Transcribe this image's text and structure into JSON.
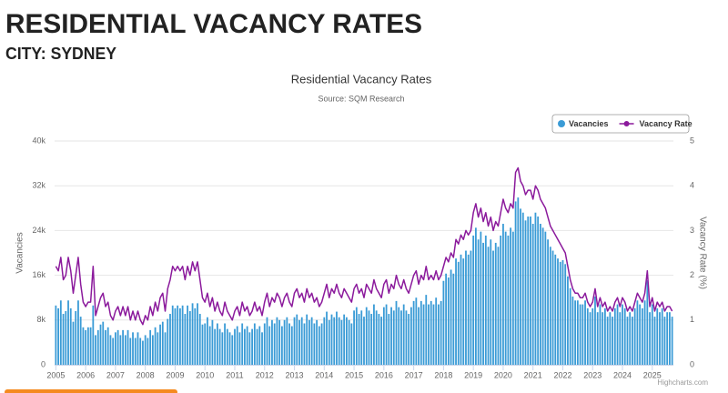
{
  "header": {
    "title": "RESIDENTIAL VACANCY RATES",
    "subtitle": "CITY: SYDNEY"
  },
  "credits": "Highcharts.com",
  "chart_data": {
    "type": "bar-line",
    "title": "Residential Vacancy Rates",
    "subtitle": "Source: SQM Research",
    "ylabel": "Vacancies",
    "y2label": "Vacancy Rate (%)",
    "legend": "top-right",
    "grid": true,
    "ylim": [
      0,
      40000
    ],
    "yticks": [
      0,
      {
        "value": 8000,
        "label": "8k"
      },
      {
        "value": 16000,
        "label": "16k"
      },
      {
        "value": 24000,
        "label": "24k"
      },
      {
        "value": 32000,
        "label": "32k"
      },
      {
        "value": 40000,
        "label": "40k"
      }
    ],
    "y2lim": [
      0,
      5
    ],
    "y2ticks": [
      0,
      1,
      2,
      3,
      4,
      5
    ],
    "categories": [
      "2005",
      null,
      null,
      null,
      null,
      null,
      null,
      null,
      null,
      null,
      null,
      null,
      "2006",
      null,
      null,
      null,
      null,
      null,
      null,
      null,
      null,
      null,
      null,
      null,
      "2007",
      null,
      null,
      null,
      null,
      null,
      null,
      null,
      null,
      null,
      null,
      null,
      "2008",
      null,
      null,
      null,
      null,
      null,
      null,
      null,
      null,
      null,
      null,
      null,
      "2009",
      null,
      null,
      null,
      null,
      null,
      null,
      null,
      null,
      null,
      null,
      null,
      "2010",
      null,
      null,
      null,
      null,
      null,
      null,
      null,
      null,
      null,
      null,
      null,
      "2011",
      null,
      null,
      null,
      null,
      null,
      null,
      null,
      null,
      null,
      null,
      null,
      "2012",
      null,
      null,
      null,
      null,
      null,
      null,
      null,
      null,
      null,
      null,
      null,
      "2013",
      null,
      null,
      null,
      null,
      null,
      null,
      null,
      null,
      null,
      null,
      null,
      "2014",
      null,
      null,
      null,
      null,
      null,
      null,
      null,
      null,
      null,
      null,
      null,
      "2015",
      null,
      null,
      null,
      null,
      null,
      null,
      null,
      null,
      null,
      null,
      null,
      "2016",
      null,
      null,
      null,
      null,
      null,
      null,
      null,
      null,
      null,
      null,
      null,
      "2017",
      null,
      null,
      null,
      null,
      null,
      null,
      null,
      null,
      null,
      null,
      null,
      "2018",
      null,
      null,
      null,
      null,
      null,
      null,
      null,
      null,
      null,
      null,
      null,
      "2019",
      null,
      null,
      null,
      null,
      null,
      null,
      null,
      null,
      null,
      null,
      null,
      "2020",
      null,
      null,
      null,
      null,
      null,
      null,
      null,
      null,
      null,
      null,
      null,
      "2021",
      null,
      null,
      null,
      null,
      null,
      null,
      null,
      null,
      null,
      null,
      null,
      "2022",
      null,
      null,
      null,
      null,
      null,
      null,
      null,
      null,
      null,
      null,
      null,
      "2023",
      null,
      null,
      null,
      null,
      null,
      null,
      null,
      null,
      null,
      null,
      null,
      "2024",
      null,
      null,
      null,
      null,
      null,
      null,
      null,
      null,
      null,
      null,
      null,
      "2025",
      null,
      null,
      null,
      null,
      null,
      null,
      null,
      null
    ],
    "series": [
      {
        "name": "Vacancies",
        "color": "#3a9bd6",
        "values": [
          10600,
          10100,
          11500,
          9100,
          9600,
          11500,
          10100,
          7700,
          9600,
          11500,
          8600,
          6700,
          6200,
          6700,
          6700,
          10600,
          5300,
          6200,
          7200,
          7700,
          6200,
          6700,
          5300,
          4800,
          5800,
          6200,
          5300,
          6200,
          5300,
          6200,
          4800,
          5800,
          4800,
          5800,
          4800,
          4300,
          5300,
          4800,
          6200,
          5300,
          6700,
          5800,
          7200,
          7700,
          5800,
          8200,
          9100,
          10600,
          10100,
          10600,
          10100,
          10600,
          9100,
          10600,
          9600,
          11000,
          10100,
          11000,
          9100,
          7200,
          7400,
          8500,
          6900,
          8000,
          6400,
          7400,
          6400,
          5800,
          7400,
          6400,
          5800,
          5300,
          6400,
          6900,
          5800,
          7400,
          6400,
          6900,
          5800,
          6400,
          7400,
          6400,
          6900,
          5800,
          7400,
          8500,
          6900,
          8000,
          7400,
          8500,
          8000,
          6900,
          8000,
          8500,
          7400,
          6900,
          8500,
          9000,
          8000,
          8500,
          7400,
          9000,
          8000,
          8500,
          7400,
          8000,
          6900,
          7400,
          8500,
          9500,
          8000,
          9000,
          8500,
          9500,
          8500,
          8000,
          9000,
          8500,
          8000,
          7400,
          9700,
          10300,
          9100,
          9700,
          8600,
          10300,
          9700,
          9100,
          10800,
          9700,
          9100,
          8600,
          10300,
          10800,
          9100,
          10300,
          9700,
          11400,
          10300,
          9700,
          10800,
          9700,
          9100,
          10300,
          11400,
          12000,
          10300,
          11400,
          10800,
          12500,
          10800,
          11400,
          10800,
          12000,
          10800,
          11400,
          15000,
          16300,
          15600,
          17000,
          16300,
          19000,
          18400,
          19700,
          19000,
          20400,
          19700,
          20400,
          23100,
          24500,
          22400,
          23800,
          21800,
          23100,
          21100,
          22400,
          20400,
          21800,
          21100,
          23100,
          25200,
          23800,
          23100,
          24500,
          23800,
          29200,
          29900,
          27900,
          27200,
          25800,
          26500,
          26500,
          25200,
          27200,
          26500,
          25200,
          24500,
          23800,
          22400,
          21100,
          20400,
          19700,
          19000,
          18400,
          18700,
          18000,
          15800,
          13700,
          12200,
          11500,
          11500,
          10800,
          10800,
          11500,
          10100,
          9400,
          10100,
          12200,
          9400,
          10800,
          9400,
          10100,
          8600,
          9400,
          8600,
          10100,
          10800,
          9400,
          10800,
          10100,
          8600,
          9400,
          8600,
          10100,
          11500,
          10800,
          10100,
          11500,
          15100,
          9400,
          10800,
          8600,
          10100,
          9400,
          10100,
          8600,
          9400,
          9400,
          8600
        ]
      },
      {
        "name": "Vacancy Rate",
        "color": "#8b1a9c",
        "axis": "y2",
        "values": [
          2.2,
          2.1,
          2.4,
          1.9,
          2.0,
          2.4,
          2.1,
          1.6,
          2.0,
          2.4,
          1.8,
          1.4,
          1.3,
          1.4,
          1.4,
          2.2,
          1.1,
          1.3,
          1.5,
          1.6,
          1.3,
          1.4,
          1.1,
          1.0,
          1.2,
          1.3,
          1.1,
          1.3,
          1.1,
          1.3,
          1.0,
          1.2,
          1.0,
          1.2,
          1.0,
          0.9,
          1.1,
          1.0,
          1.3,
          1.1,
          1.4,
          1.2,
          1.5,
          1.6,
          1.2,
          1.7,
          1.9,
          2.2,
          2.1,
          2.2,
          2.1,
          2.2,
          1.9,
          2.2,
          2.0,
          2.3,
          2.1,
          2.3,
          1.9,
          1.5,
          1.4,
          1.6,
          1.3,
          1.5,
          1.2,
          1.4,
          1.2,
          1.1,
          1.4,
          1.2,
          1.1,
          1.0,
          1.2,
          1.3,
          1.1,
          1.4,
          1.2,
          1.3,
          1.1,
          1.2,
          1.4,
          1.2,
          1.3,
          1.1,
          1.4,
          1.6,
          1.3,
          1.5,
          1.4,
          1.6,
          1.5,
          1.3,
          1.5,
          1.6,
          1.4,
          1.3,
          1.6,
          1.7,
          1.5,
          1.6,
          1.4,
          1.7,
          1.5,
          1.6,
          1.4,
          1.5,
          1.3,
          1.4,
          1.6,
          1.8,
          1.5,
          1.7,
          1.6,
          1.8,
          1.6,
          1.5,
          1.7,
          1.6,
          1.5,
          1.4,
          1.7,
          1.8,
          1.6,
          1.7,
          1.5,
          1.8,
          1.7,
          1.6,
          1.9,
          1.7,
          1.6,
          1.5,
          1.8,
          1.9,
          1.6,
          1.8,
          1.7,
          2.0,
          1.8,
          1.7,
          1.9,
          1.7,
          1.6,
          1.8,
          2.0,
          2.1,
          1.8,
          2.0,
          1.9,
          2.2,
          1.9,
          2.0,
          1.9,
          2.1,
          1.9,
          2.0,
          2.2,
          2.4,
          2.3,
          2.5,
          2.4,
          2.8,
          2.7,
          2.9,
          2.8,
          3.0,
          2.9,
          3.0,
          3.4,
          3.6,
          3.3,
          3.5,
          3.2,
          3.4,
          3.1,
          3.3,
          3.0,
          3.2,
          3.1,
          3.4,
          3.7,
          3.5,
          3.4,
          3.6,
          3.5,
          4.3,
          4.4,
          4.1,
          4.0,
          3.8,
          3.9,
          3.9,
          3.7,
          4.0,
          3.9,
          3.7,
          3.6,
          3.5,
          3.3,
          3.1,
          3.0,
          2.9,
          2.8,
          2.7,
          2.6,
          2.5,
          2.2,
          1.9,
          1.7,
          1.6,
          1.6,
          1.5,
          1.5,
          1.6,
          1.4,
          1.3,
          1.4,
          1.7,
          1.3,
          1.5,
          1.3,
          1.4,
          1.2,
          1.3,
          1.2,
          1.4,
          1.5,
          1.3,
          1.5,
          1.4,
          1.2,
          1.3,
          1.2,
          1.4,
          1.6,
          1.5,
          1.4,
          1.6,
          2.1,
          1.3,
          1.5,
          1.2,
          1.4,
          1.3,
          1.4,
          1.2,
          1.3,
          1.3,
          1.2
        ]
      }
    ]
  }
}
